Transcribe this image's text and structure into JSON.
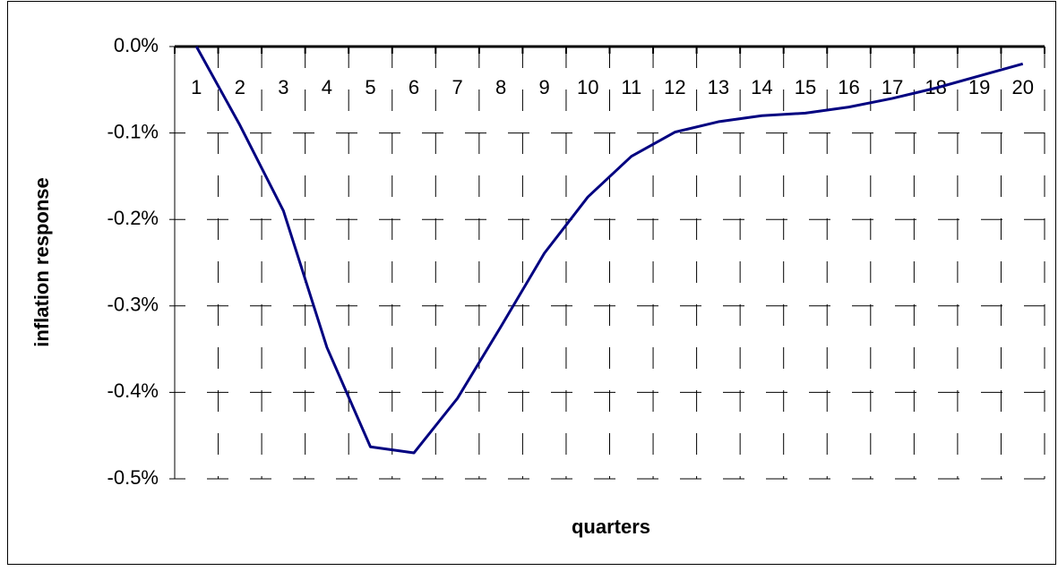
{
  "chart_data": {
    "type": "line",
    "x_label": "quarters",
    "y_label": "inflation response",
    "categories": [
      "1",
      "2",
      "3",
      "4",
      "5",
      "6",
      "7",
      "8",
      "9",
      "10",
      "11",
      "12",
      "13",
      "14",
      "15",
      "16",
      "17",
      "18",
      "19",
      "20"
    ],
    "series": [
      {
        "color": "#000080",
        "values": [
          0.0,
          -0.091,
          -0.19,
          -0.348,
          -0.463,
          -0.47,
          -0.407,
          -0.324,
          -0.239,
          -0.174,
          -0.127,
          -0.099,
          -0.087,
          -0.08,
          -0.077,
          -0.07,
          -0.06,
          -0.048,
          -0.034,
          -0.02
        ]
      }
    ],
    "ylim": [
      -0.5,
      0
    ],
    "yticks": [
      {
        "value": 0,
        "label": "0.0%"
      },
      {
        "value": -0.1,
        "label": "-0.1%"
      },
      {
        "value": -0.2,
        "label": "-0.2%"
      },
      {
        "value": -0.3,
        "label": "-0.3%"
      },
      {
        "value": -0.4,
        "label": "-0.4%"
      },
      {
        "value": -0.5,
        "label": "-0.5%"
      }
    ],
    "grid": true
  }
}
